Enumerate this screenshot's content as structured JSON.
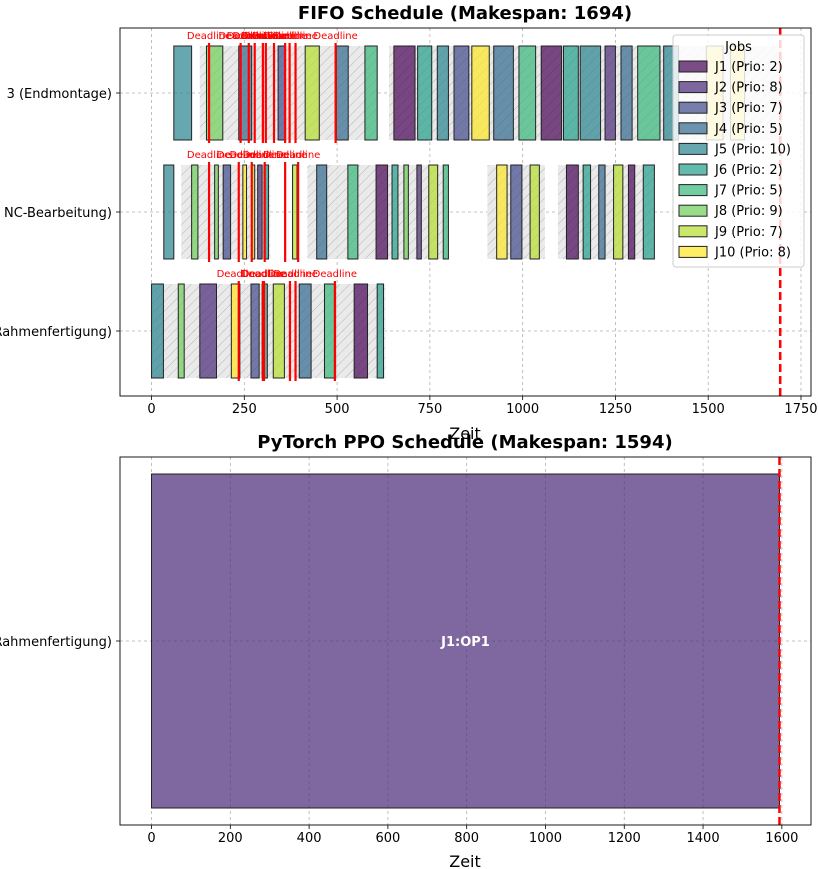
{
  "colors": {
    "J1": "#440154",
    "J2": "#482878",
    "J3": "#3e4989",
    "J4": "#31688e",
    "J5": "#26828e",
    "J6": "#1f9e89",
    "J7": "#35b779",
    "J8": "#6ece58",
    "J9": "#b5de2b",
    "J10": "#fde725",
    "deadline": "#ff0000",
    "makespan": "#ff0000",
    "idle": "#e6e6e6"
  },
  "chart_data": [
    {
      "type": "gantt",
      "title": "FIFO Schedule (Makespan: 1694)",
      "xlabel": "Zeit",
      "xlim": [
        -85,
        1777
      ],
      "xticks": [
        0,
        250,
        500,
        750,
        1000,
        1250,
        1500,
        1750
      ],
      "grid": true,
      "makespan": 1694,
      "legend": {
        "title": "Jobs",
        "placement": "upper right",
        "entries": [
          "J1 (Prio: 2)",
          "J2 (Prio: 8)",
          "J3 (Prio: 7)",
          "J4 (Prio: 5)",
          "J5 (Prio: 10)",
          "J6 (Prio: 2)",
          "J7 (Prio: 5)",
          "J8 (Prio: 9)",
          "J9 (Prio: 7)",
          "J10 (Prio: 8)"
        ]
      },
      "deadline_label": "Deadline",
      "resources": [
        {
          "name": "(Rahmenfertigung)",
          "idle": [
            [
              0,
              630
            ]
          ],
          "tasks": [
            {
              "job": "J5",
              "start": 0,
              "end": 32
            },
            {
              "job": "J8",
              "start": 72,
              "end": 88
            },
            {
              "job": "J2",
              "start": 130,
              "end": 175
            },
            {
              "job": "J10",
              "start": 215,
              "end": 238
            },
            {
              "job": "J3",
              "start": 268,
              "end": 290
            },
            {
              "job": "J6",
              "start": 298,
              "end": 312
            },
            {
              "job": "J9",
              "start": 328,
              "end": 358
            },
            {
              "job": "J4",
              "start": 398,
              "end": 430
            },
            {
              "job": "J7",
              "start": 466,
              "end": 496
            },
            {
              "job": "J1",
              "start": 546,
              "end": 582
            },
            {
              "job": "J6",
              "start": 608,
              "end": 625
            }
          ],
          "deadlines": [
            235,
            300,
            303,
            373,
            388,
            494
          ]
        },
        {
          "name": "NC-Bearbeitung)",
          "idle": [
            [
              80,
              320
            ],
            [
              420,
              800
            ],
            [
              905,
              1060
            ],
            [
              1095,
              1355
            ]
          ],
          "tasks": [
            {
              "job": "J5",
              "start": 33,
              "end": 60
            },
            {
              "job": "J8",
              "start": 108,
              "end": 125
            },
            {
              "job": "J8",
              "start": 170,
              "end": 180
            },
            {
              "job": "J3",
              "start": 193,
              "end": 213
            },
            {
              "job": "J10",
              "start": 246,
              "end": 256
            },
            {
              "job": "J9",
              "start": 270,
              "end": 278
            },
            {
              "job": "J2",
              "start": 286,
              "end": 298
            },
            {
              "job": "J6",
              "start": 303,
              "end": 315
            },
            {
              "job": "J9",
              "start": 380,
              "end": 392
            },
            {
              "job": "J4",
              "start": 445,
              "end": 472
            },
            {
              "job": "J7",
              "start": 529,
              "end": 556
            },
            {
              "job": "J1",
              "start": 605,
              "end": 636
            },
            {
              "job": "J6",
              "start": 648,
              "end": 664
            },
            {
              "job": "J8",
              "start": 680,
              "end": 692
            },
            {
              "job": "J2",
              "start": 715,
              "end": 727
            },
            {
              "job": "J9",
              "start": 747,
              "end": 771
            },
            {
              "job": "J7",
              "start": 786,
              "end": 800
            },
            {
              "job": "J10",
              "start": 930,
              "end": 958
            },
            {
              "job": "J3",
              "start": 968,
              "end": 998
            },
            {
              "job": "J9",
              "start": 1020,
              "end": 1045
            },
            {
              "job": "J1",
              "start": 1118,
              "end": 1150
            },
            {
              "job": "J6",
              "start": 1163,
              "end": 1183
            },
            {
              "job": "J4",
              "start": 1205,
              "end": 1222
            },
            {
              "job": "J9",
              "start": 1245,
              "end": 1270
            },
            {
              "job": "J1",
              "start": 1285,
              "end": 1302
            },
            {
              "job": "J6",
              "start": 1325,
              "end": 1355
            }
          ],
          "deadlines": [
            155,
            235,
            270,
            305,
            360,
            395
          ]
        },
        {
          "name": "3 (Endmontage)",
          "idle": [
            [
              130,
              610
            ],
            [
              640,
              1700
            ]
          ],
          "tasks": [
            {
              "job": "J5",
              "start": 60,
              "end": 108
            },
            {
              "job": "J8",
              "start": 148,
              "end": 192
            },
            {
              "job": "J4",
              "start": 235,
              "end": 270
            },
            {
              "job": "J3",
              "start": 341,
              "end": 360
            },
            {
              "job": "J9",
              "start": 414,
              "end": 452
            },
            {
              "job": "J4",
              "start": 498,
              "end": 530
            },
            {
              "job": "J7",
              "start": 575,
              "end": 608
            },
            {
              "job": "J1",
              "start": 653,
              "end": 710
            },
            {
              "job": "J6",
              "start": 717,
              "end": 755
            },
            {
              "job": "J5",
              "start": 770,
              "end": 800
            },
            {
              "job": "J3",
              "start": 815,
              "end": 855
            },
            {
              "job": "J10",
              "start": 863,
              "end": 910
            },
            {
              "job": "J4",
              "start": 922,
              "end": 975
            },
            {
              "job": "J7",
              "start": 990,
              "end": 1035
            },
            {
              "job": "J1",
              "start": 1050,
              "end": 1105
            },
            {
              "job": "J6",
              "start": 1110,
              "end": 1150
            },
            {
              "job": "J5",
              "start": 1155,
              "end": 1210
            },
            {
              "job": "J2",
              "start": 1222,
              "end": 1250
            },
            {
              "job": "J4",
              "start": 1265,
              "end": 1295
            },
            {
              "job": "J7",
              "start": 1310,
              "end": 1370
            },
            {
              "job": "J5",
              "start": 1380,
              "end": 1420
            },
            {
              "job": "J10",
              "start": 1495,
              "end": 1540
            },
            {
              "job": "J10",
              "start": 1560,
              "end": 1598
            }
          ],
          "deadlines": [
            155,
            240,
            262,
            278,
            300,
            308,
            330,
            360,
            372,
            388,
            496
          ]
        }
      ]
    },
    {
      "type": "gantt",
      "title": "PyTorch PPO Schedule (Makespan: 1594)",
      "xlabel": "Zeit",
      "xlim": [
        -80,
        1674
      ],
      "xticks": [
        0,
        200,
        400,
        600,
        800,
        1000,
        1200,
        1400,
        1600
      ],
      "grid": true,
      "makespan": 1594,
      "resources": [
        {
          "name": "(Rahmenfertigung)",
          "idle": [],
          "tasks": [
            {
              "job": "J2",
              "start": 0,
              "end": 1594,
              "label": "J1:OP1"
            }
          ],
          "deadlines": []
        }
      ]
    }
  ]
}
